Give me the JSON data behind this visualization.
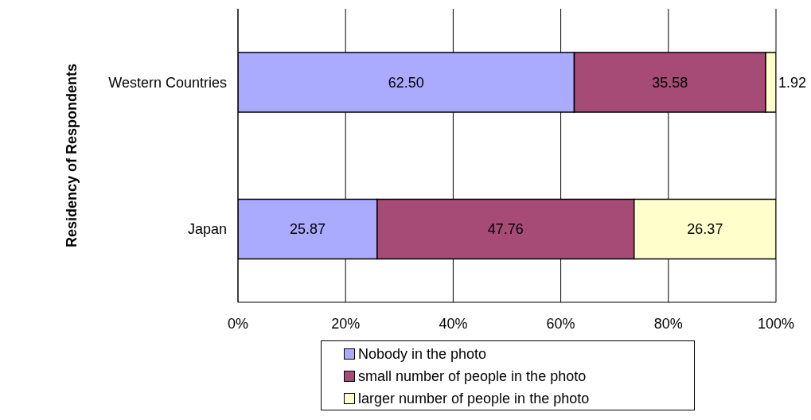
{
  "chart_data": {
    "type": "bar",
    "orientation": "horizontal",
    "stacked": true,
    "ylabel": "Residency of Respondents",
    "categories": [
      "Western Countries",
      "Japan"
    ],
    "series": [
      {
        "name": "Nobody in the photo",
        "color": "#aaaaff",
        "values": [
          62.5,
          25.87
        ],
        "value_labels": [
          "62.50",
          "25.87"
        ]
      },
      {
        "name": "small number of people in the photo",
        "color": "#a64a76",
        "values": [
          35.58,
          47.76
        ],
        "value_labels": [
          "35.58",
          "47.76"
        ]
      },
      {
        "name": "larger number of people in the photo",
        "color": "#ffffcc",
        "values": [
          1.92,
          26.37
        ],
        "value_labels": [
          "1.92",
          "26.37"
        ]
      }
    ],
    "xlim": [
      0,
      100
    ],
    "xticks": [
      {
        "value": 0,
        "label": "0%"
      },
      {
        "value": 20,
        "label": "20%"
      },
      {
        "value": 40,
        "label": "40%"
      },
      {
        "value": 60,
        "label": "60%"
      },
      {
        "value": 80,
        "label": "80%"
      },
      {
        "value": 100,
        "label": "100%"
      }
    ],
    "grid": "x",
    "legend": "bottom"
  }
}
